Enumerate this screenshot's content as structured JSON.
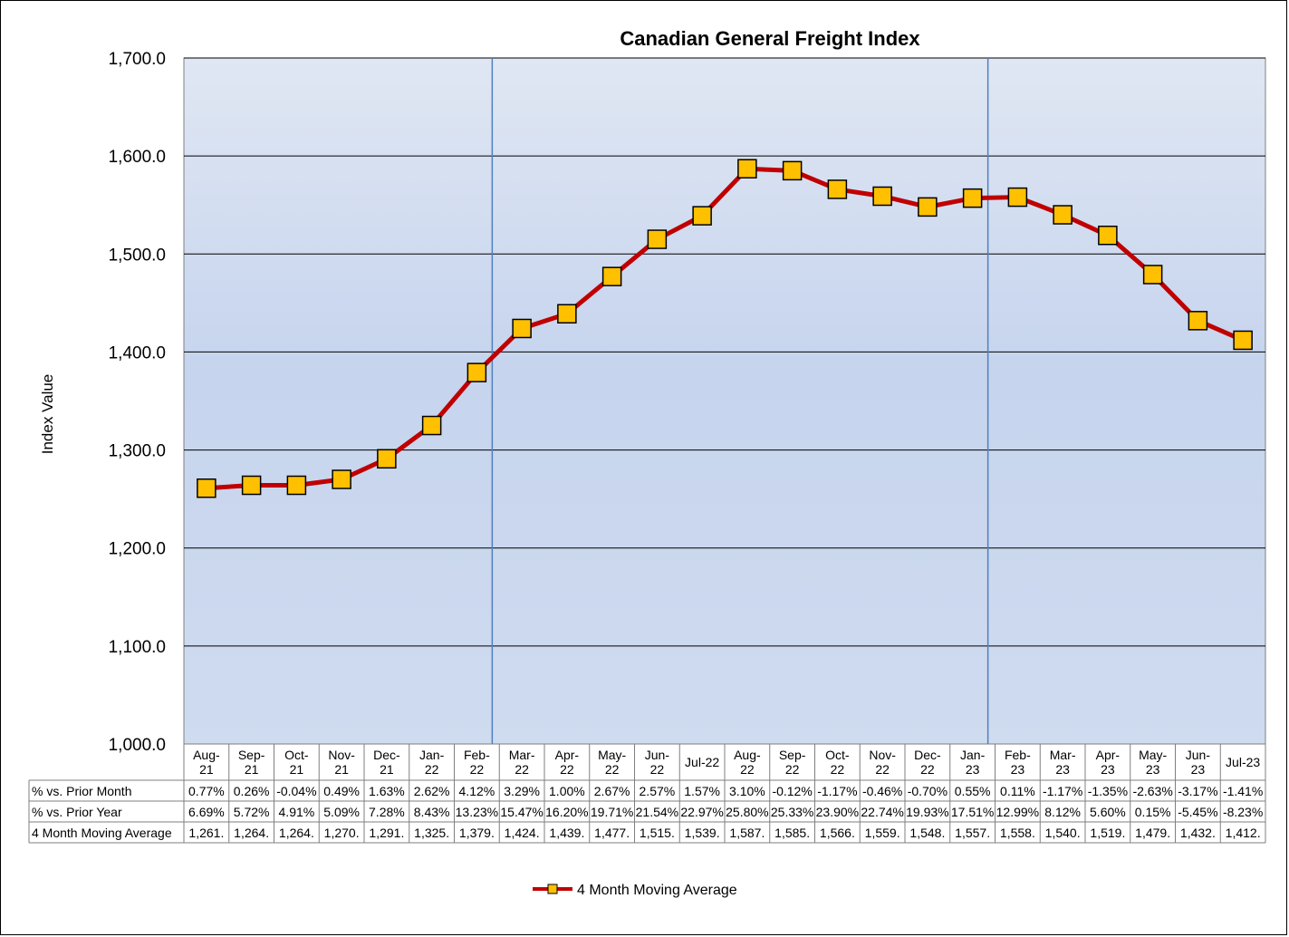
{
  "chart_data": {
    "type": "line",
    "title": "Canadian General Freight Index",
    "ylabel": "Index Value",
    "ylim": [
      1000,
      1700
    ],
    "ytick_labels": [
      "1,000.0",
      "1,100.0",
      "1,200.0",
      "1,300.0",
      "1,400.0",
      "1,500.0",
      "1,600.0",
      "1,700.0"
    ],
    "ytick_values": [
      1000,
      1100,
      1200,
      1300,
      1400,
      1500,
      1600,
      1700
    ],
    "grid": true,
    "legend_position": "bottom-center",
    "categories": [
      [
        "Aug-",
        "21"
      ],
      [
        "Sep-",
        "21"
      ],
      [
        "Oct-",
        "21"
      ],
      [
        "Nov-",
        "21"
      ],
      [
        "Dec-",
        "21"
      ],
      [
        "Jan-",
        "22"
      ],
      [
        "Feb-",
        "22"
      ],
      [
        "Mar-",
        "22"
      ],
      [
        "Apr-",
        "22"
      ],
      [
        "May-",
        "22"
      ],
      [
        "Jun-",
        "22"
      ],
      [
        "Jul-22"
      ],
      [
        "Aug-",
        "22"
      ],
      [
        "Sep-",
        "22"
      ],
      [
        "Oct-",
        "22"
      ],
      [
        "Nov-",
        "22"
      ],
      [
        "Dec-",
        "22"
      ],
      [
        "Jan-",
        "23"
      ],
      [
        "Feb-",
        "23"
      ],
      [
        "Mar-",
        "23"
      ],
      [
        "Apr-",
        "23"
      ],
      [
        "May-",
        "23"
      ],
      [
        "Jun-",
        "23"
      ],
      [
        "Jul-23"
      ]
    ],
    "series": [
      {
        "name": "4 Month Moving Average",
        "color": "#c00000",
        "marker_color": "#ffc000",
        "values": [
          1261,
          1264,
          1264,
          1270,
          1291,
          1325,
          1379,
          1424,
          1439,
          1477,
          1515,
          1539,
          1587,
          1585,
          1566,
          1559,
          1548,
          1557,
          1558,
          1540,
          1519,
          1479,
          1432,
          1412
        ]
      }
    ],
    "vertical_lines_after_index": [
      6,
      17
    ],
    "table": {
      "rows": [
        {
          "label": "% vs. Prior Month",
          "cells": [
            "0.77%",
            "0.26%",
            "-0.04%",
            "0.49%",
            "1.63%",
            "2.62%",
            "4.12%",
            "3.29%",
            "1.00%",
            "2.67%",
            "2.57%",
            "1.57%",
            "3.10%",
            "-0.12%",
            "-1.17%",
            "-0.46%",
            "-0.70%",
            "0.55%",
            "0.11%",
            "-1.17%",
            "-1.35%",
            "-2.63%",
            "-3.17%",
            "-1.41%"
          ]
        },
        {
          "label": "% vs. Prior Year",
          "cells": [
            "6.69%",
            "5.72%",
            "4.91%",
            "5.09%",
            "7.28%",
            "8.43%",
            "13.23%",
            "15.47%",
            "16.20%",
            "19.71%",
            "21.54%",
            "22.97%",
            "25.80%",
            "25.33%",
            "23.90%",
            "22.74%",
            "19.93%",
            "17.51%",
            "12.99%",
            "8.12%",
            "5.60%",
            "0.15%",
            "-5.45%",
            "-8.23%"
          ]
        },
        {
          "label": "4 Month Moving Average",
          "cells": [
            "1,261.",
            "1,264.",
            "1,264.",
            "1,270.",
            "1,291.",
            "1,325.",
            "1,379.",
            "1,424.",
            "1,439.",
            "1,477.",
            "1,515.",
            "1,539.",
            "1,587.",
            "1,585.",
            "1,566.",
            "1,559.",
            "1,548.",
            "1,557.",
            "1,558.",
            "1,540.",
            "1,519.",
            "1,479.",
            "1,432.",
            "1,412."
          ]
        }
      ]
    },
    "plot_bg_top": "#e0e7f3",
    "plot_bg_bottom": "#c8d6ee",
    "divider_color": "#4f81bd"
  }
}
